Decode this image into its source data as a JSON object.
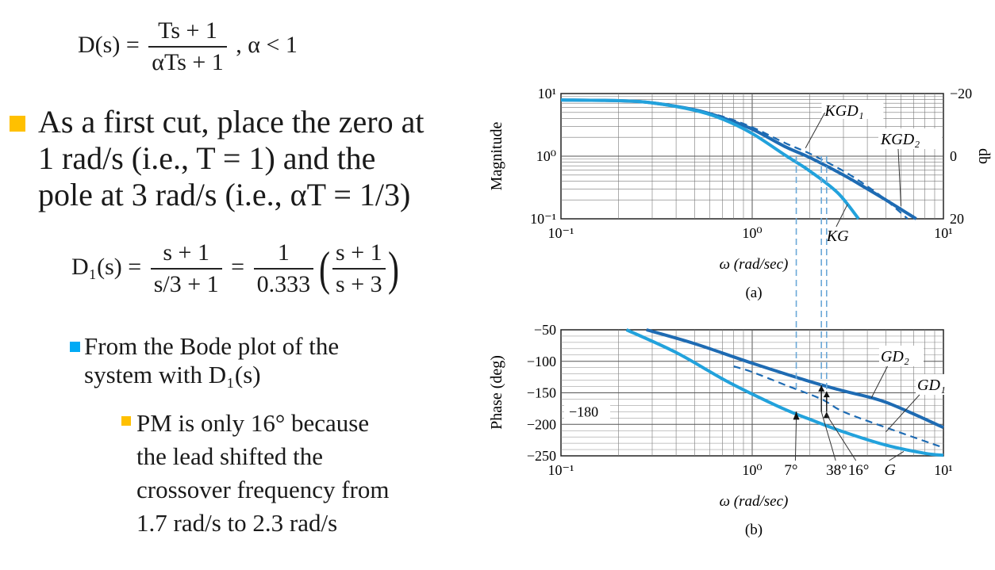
{
  "slide": {
    "eq1": {
      "lhs": "D(s) =",
      "num": "Ts + 1",
      "den": "αTs + 1",
      "tail": ",   α < 1"
    },
    "bullet1": {
      "line1": "As a first cut, place the zero at",
      "line2": "1 rad/s (i.e., T = 1) and the",
      "line3": "pole at 3 rad/s (i.e., αT = 1/3)"
    },
    "eq2": {
      "lhs": "D₁(s) =",
      "num1": "s + 1",
      "den1": "s/3 + 1",
      "eqsign": "=",
      "num2": "1",
      "den2": "0.333",
      "num3": "s + 1",
      "den3": "s + 3"
    },
    "bullet2": {
      "line1": "From the Bode plot of the",
      "line2": "system with D₁(s)"
    },
    "bullet3": {
      "line1": "PM is only 16°   because",
      "line2": "the lead shifted the",
      "line3": "crossover frequency from",
      "line4": "1.7 rad/s to 2.3 rad/s"
    }
  },
  "chart_data": [
    {
      "type": "line",
      "panel_label": "(a)",
      "xlabel": "ω (rad/sec)",
      "ylabel": "Magnitude",
      "ylabel_right": "db",
      "xscale": "log",
      "yscale": "log",
      "xlim": [
        0.1,
        10
      ],
      "ylim": [
        0.1,
        10
      ],
      "xticks": [
        "10⁻¹",
        "10⁰",
        "10¹"
      ],
      "yticks": [
        "10⁻¹",
        "10⁰",
        "10¹"
      ],
      "yticks_right": [
        "−20",
        "0",
        "20"
      ],
      "grid": true,
      "series": [
        {
          "name": "KGD₁",
          "style": "solid",
          "color": "#1e6bb3",
          "x": [
            0.1,
            0.2,
            0.3,
            0.5,
            0.7,
            1,
            1.5,
            2,
            3,
            4,
            5,
            7.2
          ],
          "y": [
            7.9,
            7.7,
            7.1,
            5.5,
            4.1,
            2.7,
            1.4,
            0.95,
            0.5,
            0.3,
            0.2,
            0.1
          ]
        },
        {
          "name": "KGD₂",
          "style": "dashed",
          "color": "#1e6bb3",
          "x": [
            0.5,
            0.7,
            1,
            1.5,
            2,
            3,
            4,
            5,
            6.5
          ],
          "y": [
            5.6,
            4.3,
            2.9,
            1.6,
            1.1,
            0.58,
            0.33,
            0.2,
            0.1
          ]
        },
        {
          "name": "KG",
          "style": "solid",
          "color": "#22a2dc",
          "x": [
            0.1,
            0.2,
            0.3,
            0.5,
            0.7,
            1,
            1.5,
            2,
            2.8,
            3.6
          ],
          "y": [
            7.9,
            7.7,
            7.1,
            5.4,
            3.9,
            2.3,
            1.02,
            0.58,
            0.26,
            0.1
          ]
        }
      ],
      "annotations": [
        "KGD₁",
        "KGD₂",
        "KG"
      ]
    },
    {
      "type": "line",
      "panel_label": "(b)",
      "xlabel": "ω (rad/sec)",
      "ylabel": "Phase (deg)",
      "xscale": "log",
      "xlim": [
        0.1,
        10
      ],
      "ylim": [
        -250,
        -50
      ],
      "xticks": [
        "10⁻¹",
        "10⁰",
        "10¹"
      ],
      "yticks": [
        "−50",
        "−100",
        "−150",
        "−200",
        "−250"
      ],
      "grid": true,
      "reference_line": {
        "y": -180,
        "label": "−180"
      },
      "series": [
        {
          "name": "GD₂",
          "style": "solid",
          "color": "#1e6bb3",
          "x": [
            0.28,
            0.5,
            1,
            2,
            3,
            5,
            10
          ],
          "y": [
            -50,
            -72,
            -103,
            -132,
            -147,
            -165,
            -205
          ]
        },
        {
          "name": "GD₁",
          "style": "dashed",
          "color": "#1e6bb3",
          "x": [
            0.8,
            1,
            1.5,
            2.3,
            3,
            5,
            10
          ],
          "y": [
            -108,
            -117,
            -138,
            -160,
            -180,
            -205,
            -237
          ]
        },
        {
          "name": "G",
          "style": "solid",
          "color": "#22a2dc",
          "x": [
            0.22,
            0.4,
            0.7,
            1,
            1.5,
            2,
            3,
            5,
            8,
            10
          ],
          "y": [
            -50,
            -86,
            -128,
            -152,
            -177,
            -192,
            -212,
            -233,
            -246,
            -249
          ]
        }
      ],
      "annotations": [
        "GD₂",
        "GD₁",
        "G",
        "7°",
        "38°",
        "16°"
      ]
    }
  ]
}
